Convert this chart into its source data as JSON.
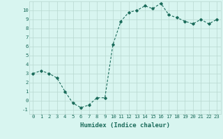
{
  "x": [
    0,
    1,
    2,
    3,
    4,
    5,
    6,
    7,
    8,
    9,
    10,
    11,
    12,
    13,
    14,
    15,
    16,
    17,
    18,
    19,
    20,
    21,
    22,
    23
  ],
  "y": [
    3.0,
    3.3,
    3.0,
    2.5,
    1.0,
    -0.3,
    -0.8,
    -0.5,
    0.3,
    0.3,
    6.2,
    8.8,
    9.8,
    10.0,
    10.5,
    10.2,
    10.8,
    9.5,
    9.2,
    8.8,
    8.5,
    9.0,
    8.5,
    9.0
  ],
  "line_color": "#1a6b5a",
  "marker": "D",
  "marker_size": 1.8,
  "line_width": 0.8,
  "xlabel": "Humidex (Indice chaleur)",
  "xlim": [
    -0.5,
    23.5
  ],
  "ylim": [
    -1.5,
    11.0
  ],
  "yticks": [
    -1,
    0,
    1,
    2,
    3,
    4,
    5,
    6,
    7,
    8,
    9,
    10
  ],
  "xticks": [
    0,
    1,
    2,
    3,
    4,
    5,
    6,
    7,
    8,
    9,
    10,
    11,
    12,
    13,
    14,
    15,
    16,
    17,
    18,
    19,
    20,
    21,
    22,
    23
  ],
  "bg_color": "#d8f5f0",
  "grid_color": "#b8d8d0",
  "tick_color": "#1a6b5a",
  "label_color": "#1a6b5a",
  "font_size_xlabel": 6.5,
  "font_size_ticks": 5.2
}
